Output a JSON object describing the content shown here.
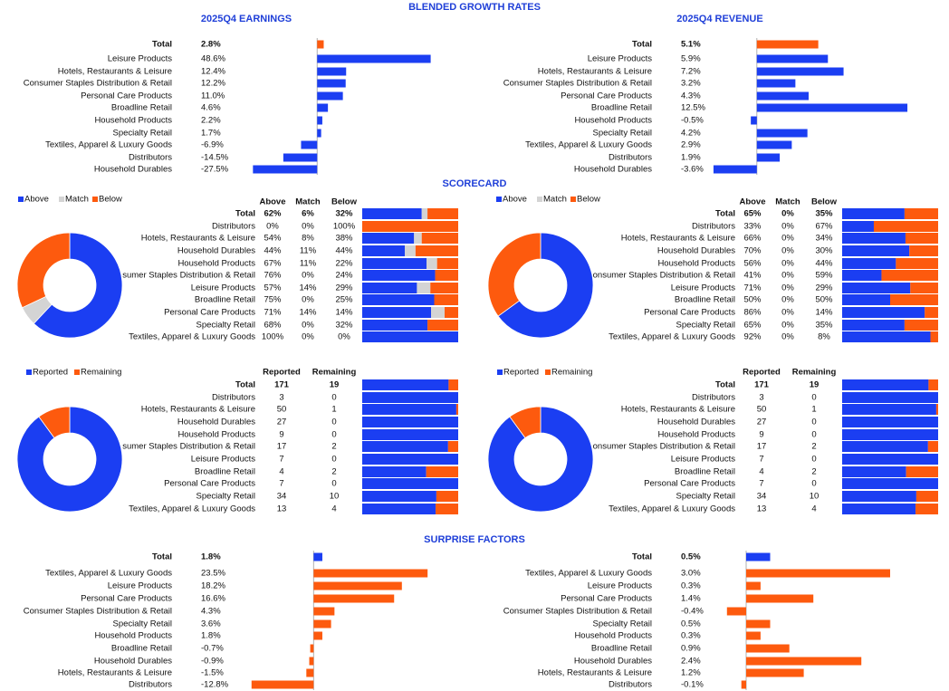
{
  "sections": [
    "BLENDED GROWTH RATES",
    "SCORECARD",
    "SURPRISE FACTORS"
  ],
  "chart_data": [
    {
      "type": "bar",
      "title": "2025Q4 EARNINGS",
      "color": "#1b3ef2",
      "total_color": "#fd5a0e",
      "negative_color": "#e8262a",
      "xlim": [
        -35,
        60
      ],
      "categories": [
        "Total",
        "Leisure Products",
        "Hotels, Restaurants & Leisure",
        "Consumer Staples Distribution & Retail",
        "Personal Care Products",
        "Broadline Retail",
        "Household Products",
        "Specialty Retail",
        "Textiles, Apparel & Luxury Goods",
        "Distributors",
        "Household Durables"
      ],
      "values": [
        2.8,
        48.6,
        12.4,
        12.2,
        11.0,
        4.6,
        2.2,
        1.7,
        -6.9,
        -14.5,
        -27.5
      ],
      "value_labels": [
        "2.8%",
        "48.6%",
        "12.4%",
        "12.2%",
        "11.0%",
        "4.6%",
        "2.2%",
        "1.7%",
        "-6.9%",
        "-14.5%",
        "-27.5%"
      ]
    },
    {
      "type": "bar",
      "title": "2025Q4 REVENUE",
      "color": "#1b3ef2",
      "total_color": "#fd5a0e",
      "negative_color": "#e8262a",
      "xlim": [
        -6,
        14
      ],
      "categories": [
        "Total",
        "Leisure Products",
        "Hotels, Restaurants & Leisure",
        "Consumer Staples Distribution & Retail",
        "Personal Care Products",
        "Broadline Retail",
        "Household Products",
        "Specialty Retail",
        "Textiles, Apparel & Luxury Goods",
        "Distributors",
        "Household Durables"
      ],
      "values": [
        5.1,
        5.9,
        7.2,
        3.2,
        4.3,
        12.5,
        -0.5,
        4.2,
        2.9,
        1.9,
        -3.6
      ],
      "value_labels": [
        "5.1%",
        "5.9%",
        "7.2%",
        "3.2%",
        "4.3%",
        "12.5%",
        "-0.5%",
        "4.2%",
        "2.9%",
        "1.9%",
        "-3.6%"
      ]
    },
    {
      "type": "stacked_bar_donut",
      "categories": [
        "Total",
        "Distributors",
        "Hotels, Restaurants & Leisure",
        "Household Durables",
        "Household Products",
        "Consumer Staples Distribution & Retail",
        "Leisure Products",
        "Broadline Retail",
        "Personal Care Products",
        "Specialty Retail",
        "Textiles, Apparel & Luxury Goods"
      ],
      "series": [
        {
          "name": "Above",
          "color": "#1b3ef2",
          "values": [
            62,
            0,
            54,
            44,
            67,
            76,
            57,
            75,
            71,
            68,
            100
          ],
          "value_labels": [
            "62%",
            "0%",
            "54%",
            "44%",
            "67%",
            "76%",
            "57%",
            "75%",
            "71%",
            "68%",
            "100%"
          ]
        },
        {
          "name": "Match",
          "color": "#d4d4d4",
          "values": [
            6,
            0,
            8,
            11,
            11,
            0,
            14,
            0,
            14,
            0,
            0
          ],
          "value_labels": [
            "6%",
            "0%",
            "8%",
            "11%",
            "11%",
            "0%",
            "14%",
            "0%",
            "14%",
            "0%",
            "0%"
          ]
        },
        {
          "name": "Below",
          "color": "#fd5a0e",
          "values": [
            32,
            100,
            38,
            44,
            22,
            24,
            29,
            25,
            14,
            32,
            0
          ],
          "value_labels": [
            "32%",
            "100%",
            "38%",
            "44%",
            "22%",
            "24%",
            "29%",
            "25%",
            "14%",
            "32%",
            "0%"
          ]
        }
      ]
    },
    {
      "type": "stacked_bar_donut",
      "categories": [
        "Total",
        "Distributors",
        "Hotels, Restaurants & Leisure",
        "Household Durables",
        "Household Products",
        "Consumer Staples Distribution & Retail",
        "Leisure Products",
        "Broadline Retail",
        "Personal Care Products",
        "Specialty Retail",
        "Textiles, Apparel & Luxury Goods"
      ],
      "series": [
        {
          "name": "Above",
          "color": "#1b3ef2",
          "values": [
            65,
            33,
            66,
            70,
            56,
            41,
            71,
            50,
            86,
            65,
            92
          ],
          "value_labels": [
            "65%",
            "33%",
            "66%",
            "70%",
            "56%",
            "41%",
            "71%",
            "50%",
            "86%",
            "65%",
            "92%"
          ]
        },
        {
          "name": "Match",
          "color": "#d4d4d4",
          "values": [
            0,
            0,
            0,
            0,
            0,
            0,
            0,
            0,
            0,
            0,
            0
          ],
          "value_labels": [
            "0%",
            "0%",
            "0%",
            "0%",
            "0%",
            "0%",
            "0%",
            "0%",
            "0%",
            "0%",
            "0%"
          ]
        },
        {
          "name": "Below",
          "color": "#fd5a0e",
          "values": [
            35,
            67,
            34,
            30,
            44,
            59,
            29,
            50,
            14,
            35,
            8
          ],
          "value_labels": [
            "35%",
            "67%",
            "34%",
            "30%",
            "44%",
            "59%",
            "29%",
            "50%",
            "14%",
            "35%",
            "8%"
          ]
        }
      ]
    },
    {
      "type": "stacked_bar_donut",
      "categories": [
        "Total",
        "Distributors",
        "Hotels, Restaurants & Leisure",
        "Household Durables",
        "Household Products",
        "Consumer Staples Distribution & Retail",
        "Leisure Products",
        "Broadline Retail",
        "Personal Care Products",
        "Specialty Retail",
        "Textiles, Apparel & Luxury Goods"
      ],
      "series": [
        {
          "name": "Reported",
          "color": "#1b3ef2",
          "values": [
            171,
            3,
            50,
            27,
            9,
            17,
            7,
            4,
            7,
            34,
            13
          ]
        },
        {
          "name": "Remaining",
          "color": "#fd5a0e",
          "values": [
            19,
            0,
            1,
            0,
            0,
            2,
            0,
            2,
            0,
            10,
            4
          ]
        }
      ]
    },
    {
      "type": "stacked_bar_donut",
      "categories": [
        "Total",
        "Distributors",
        "Hotels, Restaurants & Leisure",
        "Household Durables",
        "Household Products",
        "Consumer Staples Distribution & Retail",
        "Leisure Products",
        "Broadline Retail",
        "Personal Care Products",
        "Specialty Retail",
        "Textiles, Apparel & Luxury Goods"
      ],
      "series": [
        {
          "name": "Reported",
          "color": "#1b3ef2",
          "values": [
            171,
            3,
            50,
            27,
            9,
            17,
            7,
            4,
            7,
            34,
            13
          ]
        },
        {
          "name": "Remaining",
          "color": "#fd5a0e",
          "values": [
            19,
            0,
            1,
            0,
            0,
            2,
            0,
            2,
            0,
            10,
            4
          ]
        }
      ]
    },
    {
      "type": "bar",
      "color": "#fd5a0e",
      "total_color": "#1b3ef2",
      "negative_color": "#e8262a",
      "xlim": [
        -15,
        30
      ],
      "categories": [
        "Total",
        "Textiles, Apparel & Luxury Goods",
        "Leisure Products",
        "Personal Care Products",
        "Consumer Staples Distribution & Retail",
        "Specialty Retail",
        "Household Products",
        "Broadline Retail",
        "Household Durables",
        "Hotels, Restaurants & Leisure",
        "Distributors"
      ],
      "values": [
        1.8,
        23.5,
        18.2,
        16.6,
        4.3,
        3.6,
        1.8,
        -0.7,
        -0.9,
        -1.5,
        -12.8
      ],
      "value_labels": [
        "1.8%",
        "23.5%",
        "18.2%",
        "16.6%",
        "4.3%",
        "3.6%",
        "1.8%",
        "-0.7%",
        "-0.9%",
        "-1.5%",
        "-12.8%"
      ]
    },
    {
      "type": "bar",
      "color": "#fd5a0e",
      "total_color": "#1b3ef2",
      "negative_color": "#e8262a",
      "xlim": [
        -1,
        4
      ],
      "categories": [
        "Total",
        "Textiles, Apparel & Luxury Goods",
        "Leisure Products",
        "Personal Care Products",
        "Consumer Staples Distribution & Retail",
        "Specialty Retail",
        "Household Products",
        "Broadline Retail",
        "Household Durables",
        "Hotels, Restaurants & Leisure",
        "Distributors"
      ],
      "values": [
        0.5,
        3.0,
        0.3,
        1.4,
        -0.4,
        0.5,
        0.3,
        0.9,
        2.4,
        1.2,
        -0.1
      ],
      "value_labels": [
        "0.5%",
        "3.0%",
        "0.3%",
        "1.4%",
        "-0.4%",
        "0.5%",
        "0.3%",
        "0.9%",
        "2.4%",
        "1.2%",
        "-0.1%"
      ]
    }
  ]
}
